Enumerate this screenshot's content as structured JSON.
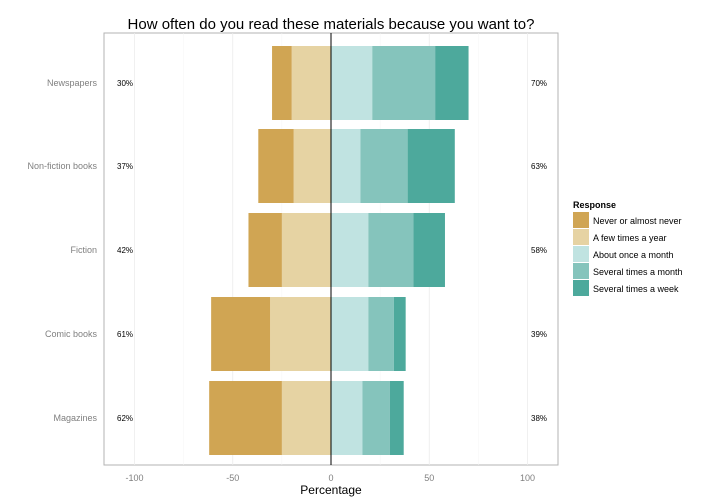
{
  "chart_data": {
    "type": "bar",
    "orientation": "horizontal-diverging",
    "title": "How often do you read these materials because you want to?",
    "xlabel": "Percentage",
    "ylabel": "",
    "xlim": [
      -100,
      100
    ],
    "x_ticks": [
      -100,
      -50,
      0,
      50,
      100
    ],
    "x_tick_labels": [
      "-100",
      "-50",
      "0",
      "50",
      "100"
    ],
    "grid": true,
    "legend_position": "right",
    "legend_title": "Response",
    "categories": [
      "Newspapers",
      "Non-fiction books",
      "Fiction",
      "Comic books",
      "Magazines"
    ],
    "series": [
      {
        "name": "Never or almost never",
        "color": "#D0A553",
        "side": "negative",
        "values": [
          10,
          18,
          17,
          30,
          37
        ]
      },
      {
        "name": "A few times a year",
        "color": "#E6D3A3",
        "side": "negative",
        "values": [
          20,
          19,
          25,
          31,
          25
        ]
      },
      {
        "name": "About once a month",
        "color": "#C0E3E1",
        "side": "positive",
        "values": [
          21,
          15,
          19,
          19,
          16
        ]
      },
      {
        "name": "Several times a month",
        "color": "#85C4BC",
        "side": "positive",
        "values": [
          32,
          24,
          23,
          13,
          14
        ]
      },
      {
        "name": "Several times a week",
        "color": "#4DA99C",
        "side": "positive",
        "values": [
          17,
          24,
          16,
          6,
          7
        ]
      }
    ],
    "left_totals": [
      "30%",
      "37%",
      "42%",
      "61%",
      "62%"
    ],
    "right_totals": [
      "70%",
      "63%",
      "58%",
      "39%",
      "38%"
    ]
  }
}
